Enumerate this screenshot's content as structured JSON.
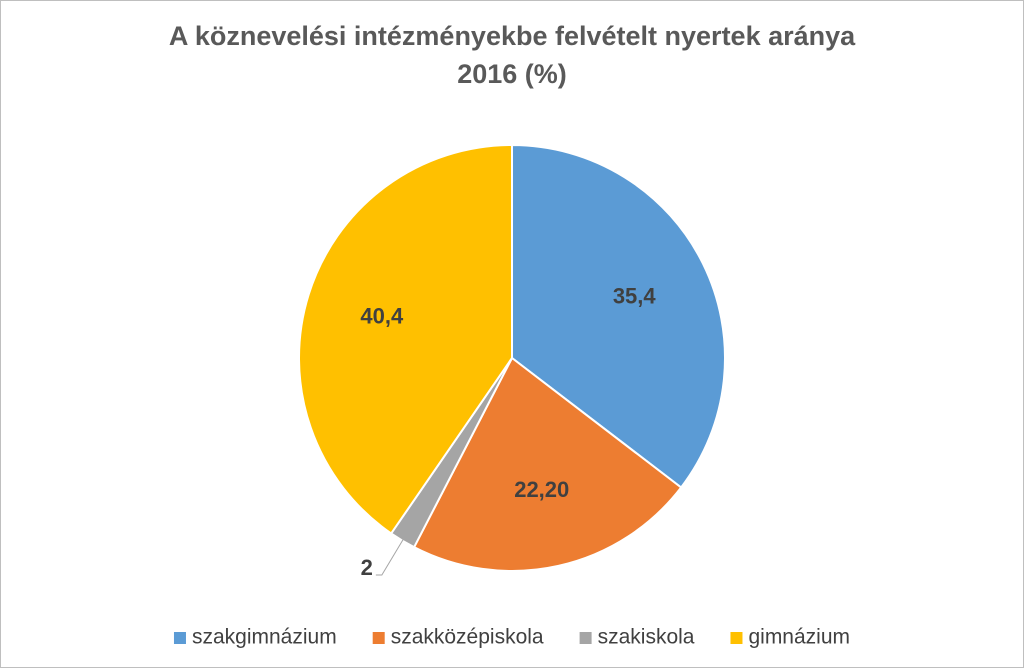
{
  "chart_data": {
    "type": "pie",
    "title": "A köznevelési intézményekbe felvételt nyertek aránya",
    "subtitle": "2016 (%)",
    "categories": [
      "szakgimnázium",
      "szakközépiskola",
      "szakiskola",
      "gimnázium"
    ],
    "values": [
      35.4,
      22.2,
      2,
      40.4
    ],
    "value_labels": [
      "35,4",
      "22,20",
      "2",
      "40,4"
    ],
    "colors": [
      "#5b9bd5",
      "#ed7d31",
      "#a5a5a5",
      "#ffc000"
    ],
    "legend": "bottom"
  }
}
